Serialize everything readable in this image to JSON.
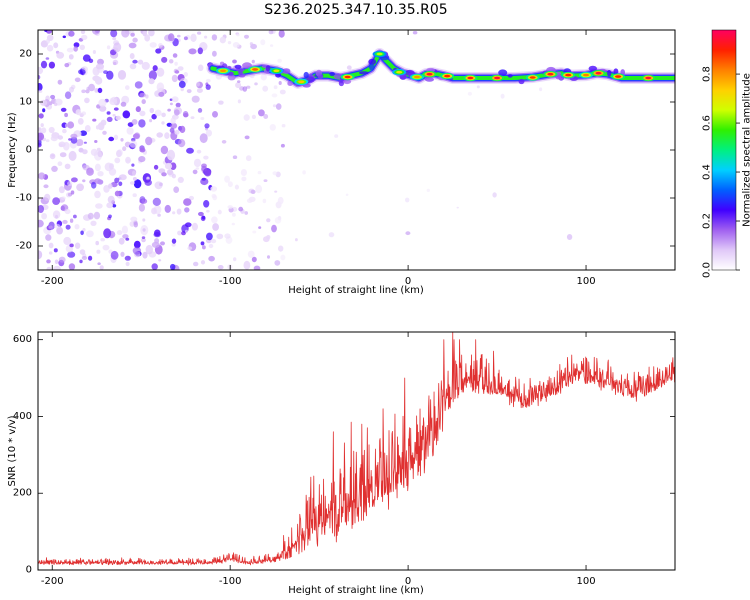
{
  "figure": {
    "title": "S236.2025.347.10.35.R05"
  },
  "chart_data": [
    {
      "type": "heatmap",
      "xlabel": "Height of straight line (km)",
      "ylabel": "Frequency (Hz)",
      "xlim": [
        -208,
        150
      ],
      "ylim": [
        -25,
        25
      ],
      "xticks": [
        -200,
        -100,
        0,
        100
      ],
      "yticks": [
        -20,
        -10,
        0,
        10,
        20
      ],
      "colorbar": {
        "label": "Normalized spectral amplitude",
        "range": [
          0,
          0.98
        ],
        "ticks": [
          "0.0",
          "0.2",
          "0.4",
          "0.6",
          "0.8"
        ],
        "tick_values": [
          0.0,
          0.2,
          0.4,
          0.6,
          0.8
        ],
        "colors": [
          "#ffffff",
          "#e0c8f8",
          "#a060f0",
          "#4000ff",
          "#0060ff",
          "#00d0ff",
          "#00f080",
          "#30f000",
          "#d0ff00",
          "#ffd000",
          "#ff8000",
          "#ff2000",
          "#ff0060"
        ]
      },
      "tonal_line": {
        "points": [
          [
            -110,
            17
          ],
          [
            -104,
            16.5
          ],
          [
            -97,
            16
          ],
          [
            -90,
            16.5
          ],
          [
            -82,
            17
          ],
          [
            -74,
            16.5
          ],
          [
            -68,
            15.5
          ],
          [
            -62,
            14
          ],
          [
            -57,
            14.5
          ],
          [
            -52,
            15.5
          ],
          [
            -45,
            15.5
          ],
          [
            -38,
            15
          ],
          [
            -32,
            15.5
          ],
          [
            -26,
            16
          ],
          [
            -21,
            17
          ],
          [
            -16,
            20
          ],
          [
            -12,
            18.5
          ],
          [
            -8,
            17
          ],
          [
            -3,
            16
          ],
          [
            2,
            15.5
          ],
          [
            6,
            15
          ],
          [
            10,
            15.8
          ],
          [
            14,
            16
          ],
          [
            20,
            15.5
          ],
          [
            25,
            15
          ],
          [
            40,
            15
          ],
          [
            60,
            15
          ],
          [
            70,
            15.2
          ],
          [
            80,
            15.8
          ],
          [
            86,
            16
          ],
          [
            92,
            15.5
          ],
          [
            100,
            15.6
          ],
          [
            106,
            16
          ],
          [
            112,
            15.8
          ],
          [
            120,
            15
          ],
          [
            135,
            15
          ],
          [
            150,
            15
          ]
        ],
        "hotspots": [
          {
            "x": -104,
            "y": 16.5,
            "value": 0.8
          },
          {
            "x": -86,
            "y": 16.8,
            "value": 0.85
          },
          {
            "x": -74,
            "y": 16.5,
            "value": 0.7
          },
          {
            "x": -60,
            "y": 14.2,
            "value": 0.75
          },
          {
            "x": -34,
            "y": 15.2,
            "value": 0.9
          },
          {
            "x": -16,
            "y": 20,
            "value": 0.65
          },
          {
            "x": -5,
            "y": 16.2,
            "value": 0.7
          },
          {
            "x": 5,
            "y": 15.2,
            "value": 0.8
          },
          {
            "x": 12,
            "y": 15.8,
            "value": 0.95
          },
          {
            "x": 22,
            "y": 15.4,
            "value": 0.9
          },
          {
            "x": 35,
            "y": 15,
            "value": 0.92
          },
          {
            "x": 50,
            "y": 15,
            "value": 0.95
          },
          {
            "x": 70,
            "y": 15.1,
            "value": 0.88
          },
          {
            "x": 80,
            "y": 15.8,
            "value": 0.93
          },
          {
            "x": 90,
            "y": 15.6,
            "value": 0.9
          },
          {
            "x": 100,
            "y": 15.6,
            "value": 0.82
          },
          {
            "x": 107,
            "y": 16,
            "value": 0.95
          },
          {
            "x": 118,
            "y": 15.3,
            "value": 0.9
          },
          {
            "x": 135,
            "y": 15,
            "value": 0.95
          }
        ]
      },
      "noise": {
        "dense_x": [
          -208,
          -110
        ],
        "sparse_x": [
          -110,
          -70
        ],
        "fringe_x": [
          -70,
          150
        ],
        "dense_count": 520,
        "sparse_count": 110,
        "fringe_count": 18
      }
    },
    {
      "type": "line",
      "xlabel": "Height of straight line (km)",
      "ylabel": "SNR (10 * v/v)",
      "xlim": [
        -208,
        150
      ],
      "ylim": [
        0,
        620
      ],
      "xticks": [
        -200,
        -100,
        0,
        100
      ],
      "yticks": [
        0,
        200,
        400,
        600
      ],
      "color": "#e03030",
      "envelope": [
        {
          "x": -208,
          "mean": 18,
          "spread": 8
        },
        {
          "x": -110,
          "mean": 18,
          "spread": 8
        },
        {
          "x": -100,
          "mean": 30,
          "spread": 14
        },
        {
          "x": -90,
          "mean": 18,
          "spread": 8
        },
        {
          "x": -75,
          "mean": 25,
          "spread": 12
        },
        {
          "x": -65,
          "mean": 55,
          "spread": 40
        },
        {
          "x": -55,
          "mean": 110,
          "spread": 90
        },
        {
          "x": -45,
          "mean": 130,
          "spread": 110
        },
        {
          "x": -35,
          "mean": 160,
          "spread": 110
        },
        {
          "x": -25,
          "mean": 180,
          "spread": 120
        },
        {
          "x": -15,
          "mean": 220,
          "spread": 110
        },
        {
          "x": -5,
          "mean": 240,
          "spread": 120
        },
        {
          "x": 5,
          "mean": 290,
          "spread": 110
        },
        {
          "x": 15,
          "mean": 350,
          "spread": 100
        },
        {
          "x": 25,
          "mean": 470,
          "spread": 80
        },
        {
          "x": 35,
          "mean": 500,
          "spread": 60
        },
        {
          "x": 45,
          "mean": 480,
          "spread": 50
        },
        {
          "x": 55,
          "mean": 460,
          "spread": 40
        },
        {
          "x": 65,
          "mean": 440,
          "spread": 35
        },
        {
          "x": 75,
          "mean": 450,
          "spread": 35
        },
        {
          "x": 85,
          "mean": 480,
          "spread": 40
        },
        {
          "x": 95,
          "mean": 510,
          "spread": 35
        },
        {
          "x": 105,
          "mean": 500,
          "spread": 40
        },
        {
          "x": 115,
          "mean": 480,
          "spread": 40
        },
        {
          "x": 125,
          "mean": 460,
          "spread": 40
        },
        {
          "x": 135,
          "mean": 470,
          "spread": 40
        },
        {
          "x": 145,
          "mean": 500,
          "spread": 35
        },
        {
          "x": 150,
          "mean": 505,
          "spread": 30
        }
      ],
      "peaks": [
        {
          "x": -70,
          "y": 90
        },
        {
          "x": -42,
          "y": 360
        },
        {
          "x": -32,
          "y": 385
        },
        {
          "x": -26,
          "y": 380
        },
        {
          "x": -14,
          "y": 420
        },
        {
          "x": -2,
          "y": 500
        },
        {
          "x": 20,
          "y": 600
        },
        {
          "x": 25,
          "y": 620
        },
        {
          "x": 38,
          "y": 600
        },
        {
          "x": 48,
          "y": 570
        },
        {
          "x": 92,
          "y": 560
        },
        {
          "x": 148,
          "y": 540
        }
      ],
      "samples": 1500
    }
  ]
}
